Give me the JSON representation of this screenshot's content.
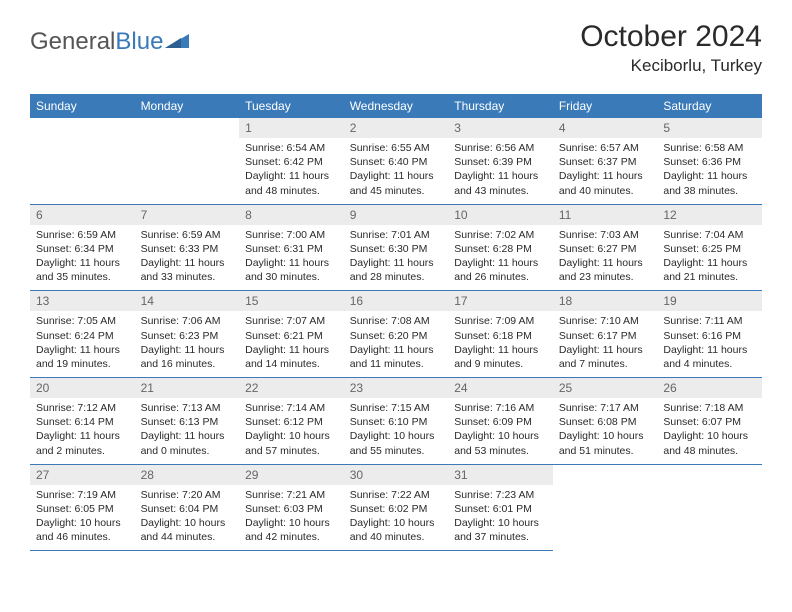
{
  "brand": {
    "part1": "General",
    "part2": "Blue"
  },
  "title": "October 2024",
  "location": "Keciborlu, Turkey",
  "colors": {
    "header_bg": "#3a7ab8",
    "header_text": "#ffffff",
    "daynum_bg": "#ececec",
    "daynum_text": "#666666",
    "body_text": "#2a2a2a",
    "border": "#3a7ab8",
    "page_bg": "#ffffff"
  },
  "dayHeaders": [
    "Sunday",
    "Monday",
    "Tuesday",
    "Wednesday",
    "Thursday",
    "Friday",
    "Saturday"
  ],
  "weeks": [
    [
      null,
      null,
      {
        "n": "1",
        "sr": "6:54 AM",
        "ss": "6:42 PM",
        "dl": "11 hours and 48 minutes."
      },
      {
        "n": "2",
        "sr": "6:55 AM",
        "ss": "6:40 PM",
        "dl": "11 hours and 45 minutes."
      },
      {
        "n": "3",
        "sr": "6:56 AM",
        "ss": "6:39 PM",
        "dl": "11 hours and 43 minutes."
      },
      {
        "n": "4",
        "sr": "6:57 AM",
        "ss": "6:37 PM",
        "dl": "11 hours and 40 minutes."
      },
      {
        "n": "5",
        "sr": "6:58 AM",
        "ss": "6:36 PM",
        "dl": "11 hours and 38 minutes."
      }
    ],
    [
      {
        "n": "6",
        "sr": "6:59 AM",
        "ss": "6:34 PM",
        "dl": "11 hours and 35 minutes."
      },
      {
        "n": "7",
        "sr": "6:59 AM",
        "ss": "6:33 PM",
        "dl": "11 hours and 33 minutes."
      },
      {
        "n": "8",
        "sr": "7:00 AM",
        "ss": "6:31 PM",
        "dl": "11 hours and 30 minutes."
      },
      {
        "n": "9",
        "sr": "7:01 AM",
        "ss": "6:30 PM",
        "dl": "11 hours and 28 minutes."
      },
      {
        "n": "10",
        "sr": "7:02 AM",
        "ss": "6:28 PM",
        "dl": "11 hours and 26 minutes."
      },
      {
        "n": "11",
        "sr": "7:03 AM",
        "ss": "6:27 PM",
        "dl": "11 hours and 23 minutes."
      },
      {
        "n": "12",
        "sr": "7:04 AM",
        "ss": "6:25 PM",
        "dl": "11 hours and 21 minutes."
      }
    ],
    [
      {
        "n": "13",
        "sr": "7:05 AM",
        "ss": "6:24 PM",
        "dl": "11 hours and 19 minutes."
      },
      {
        "n": "14",
        "sr": "7:06 AM",
        "ss": "6:23 PM",
        "dl": "11 hours and 16 minutes."
      },
      {
        "n": "15",
        "sr": "7:07 AM",
        "ss": "6:21 PM",
        "dl": "11 hours and 14 minutes."
      },
      {
        "n": "16",
        "sr": "7:08 AM",
        "ss": "6:20 PM",
        "dl": "11 hours and 11 minutes."
      },
      {
        "n": "17",
        "sr": "7:09 AM",
        "ss": "6:18 PM",
        "dl": "11 hours and 9 minutes."
      },
      {
        "n": "18",
        "sr": "7:10 AM",
        "ss": "6:17 PM",
        "dl": "11 hours and 7 minutes."
      },
      {
        "n": "19",
        "sr": "7:11 AM",
        "ss": "6:16 PM",
        "dl": "11 hours and 4 minutes."
      }
    ],
    [
      {
        "n": "20",
        "sr": "7:12 AM",
        "ss": "6:14 PM",
        "dl": "11 hours and 2 minutes."
      },
      {
        "n": "21",
        "sr": "7:13 AM",
        "ss": "6:13 PM",
        "dl": "11 hours and 0 minutes."
      },
      {
        "n": "22",
        "sr": "7:14 AM",
        "ss": "6:12 PM",
        "dl": "10 hours and 57 minutes."
      },
      {
        "n": "23",
        "sr": "7:15 AM",
        "ss": "6:10 PM",
        "dl": "10 hours and 55 minutes."
      },
      {
        "n": "24",
        "sr": "7:16 AM",
        "ss": "6:09 PM",
        "dl": "10 hours and 53 minutes."
      },
      {
        "n": "25",
        "sr": "7:17 AM",
        "ss": "6:08 PM",
        "dl": "10 hours and 51 minutes."
      },
      {
        "n": "26",
        "sr": "7:18 AM",
        "ss": "6:07 PM",
        "dl": "10 hours and 48 minutes."
      }
    ],
    [
      {
        "n": "27",
        "sr": "7:19 AM",
        "ss": "6:05 PM",
        "dl": "10 hours and 46 minutes."
      },
      {
        "n": "28",
        "sr": "7:20 AM",
        "ss": "6:04 PM",
        "dl": "10 hours and 44 minutes."
      },
      {
        "n": "29",
        "sr": "7:21 AM",
        "ss": "6:03 PM",
        "dl": "10 hours and 42 minutes."
      },
      {
        "n": "30",
        "sr": "7:22 AM",
        "ss": "6:02 PM",
        "dl": "10 hours and 40 minutes."
      },
      {
        "n": "31",
        "sr": "7:23 AM",
        "ss": "6:01 PM",
        "dl": "10 hours and 37 minutes."
      },
      null,
      null
    ]
  ],
  "labels": {
    "sunrise": "Sunrise:",
    "sunset": "Sunset:",
    "daylight": "Daylight:"
  }
}
